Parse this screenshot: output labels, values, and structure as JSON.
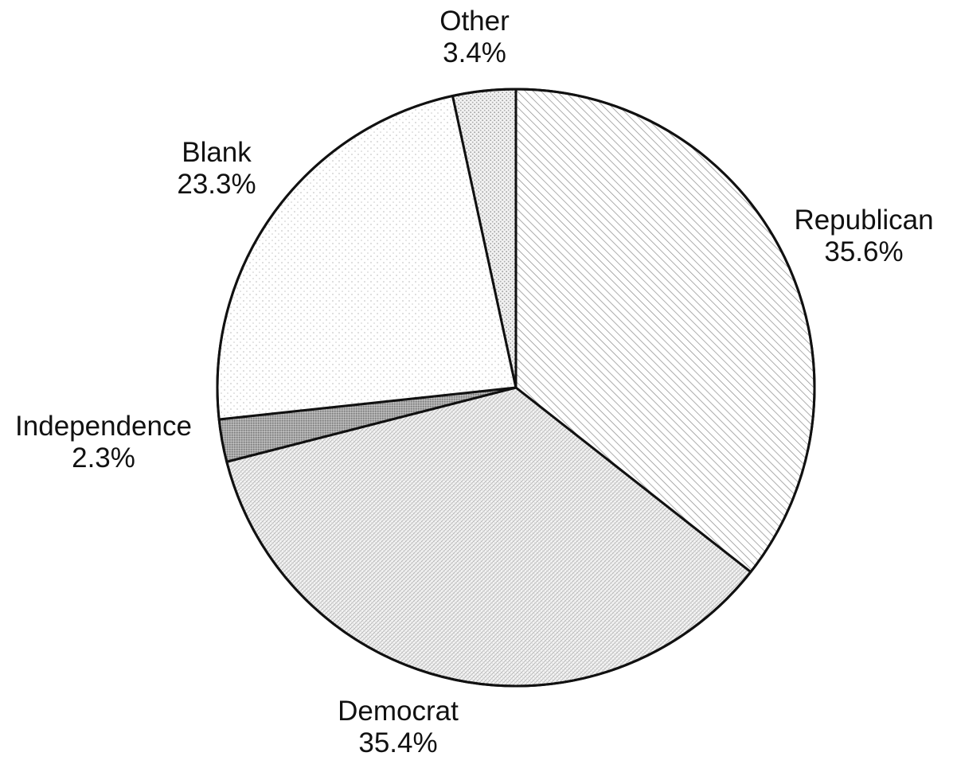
{
  "chart_data": {
    "type": "pie",
    "start_angle_deg": 0,
    "direction": "clockwise",
    "slices": [
      {
        "label": "Republican",
        "value": 35.6,
        "value_label": "35.6%",
        "pattern": "diagonal-hatch"
      },
      {
        "label": "Democrat",
        "value": 35.4,
        "value_label": "35.4%",
        "pattern": "fine-crosshatch"
      },
      {
        "label": "Independence",
        "value": 2.3,
        "value_label": "2.3%",
        "pattern": "dense-gray"
      },
      {
        "label": "Blank",
        "value": 23.3,
        "value_label": "23.3%",
        "pattern": "sparse-dots"
      },
      {
        "label": "Other",
        "value": 3.4,
        "value_label": "3.4%",
        "pattern": "medium-dots"
      }
    ],
    "colors": {
      "outline": "#111111",
      "background": "#ffffff"
    }
  }
}
